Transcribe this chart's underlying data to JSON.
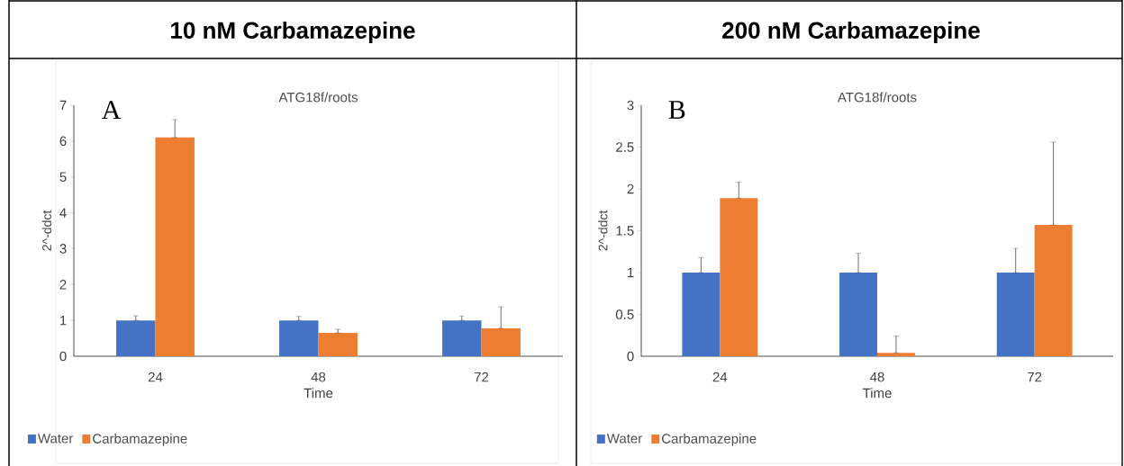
{
  "chart_data": [
    {
      "type": "bar",
      "title": "10 nM Carbamazepine",
      "subtitle": "ATG18f/roots",
      "xlabel": "Time",
      "ylabel": "2^-ddct",
      "annotations": [
        "A"
      ],
      "categories": [
        "24",
        "48",
        "72"
      ],
      "series": [
        {
          "name": "Water",
          "color": "#4472c4",
          "values": [
            1,
            1,
            1
          ],
          "errors": [
            [
              1,
              1.13
            ],
            [
              1,
              1.11
            ],
            [
              1,
              1.12
            ]
          ]
        },
        {
          "name": "Carbamazepine",
          "color": "#ed7d31",
          "values": [
            6.1,
            0.65,
            0.78
          ],
          "errors": [
            [
              6.1,
              6.6
            ],
            [
              0.65,
              0.75
            ],
            [
              0.78,
              1.38
            ]
          ]
        }
      ],
      "ylim": [
        0,
        7
      ],
      "yticks": [
        0,
        1,
        2,
        3,
        4,
        5,
        6,
        7
      ],
      "legend": "bottom"
    },
    {
      "type": "bar",
      "title": "200 nM Carbamazepine",
      "subtitle": "ATG18f/roots",
      "xlabel": "Time",
      "ylabel": "2^-ddct",
      "annotations": [
        "B"
      ],
      "categories": [
        "24",
        "48",
        "72"
      ],
      "series": [
        {
          "name": "Water",
          "color": "#4472c4",
          "values": [
            1,
            1,
            1
          ],
          "errors": [
            [
              1,
              1.18
            ],
            [
              1,
              1.23
            ],
            [
              1,
              1.29
            ]
          ]
        },
        {
          "name": "Carbamazepine",
          "color": "#ed7d31",
          "values": [
            1.89,
            0.04,
            1.57
          ],
          "errors": [
            [
              1.89,
              2.08
            ],
            [
              0.04,
              0.24
            ],
            [
              1.57,
              2.56
            ]
          ]
        }
      ],
      "ylim": [
        0,
        3
      ],
      "yticks": [
        0,
        0.5,
        1,
        1.5,
        2,
        2.5,
        3
      ],
      "legend": "bottom"
    }
  ]
}
